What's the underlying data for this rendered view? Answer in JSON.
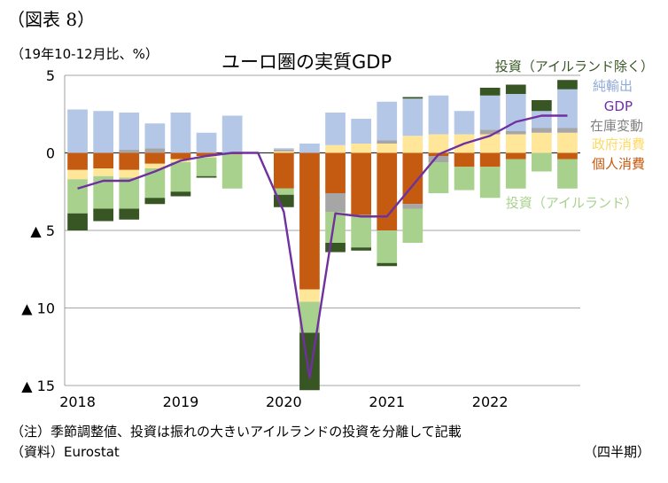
{
  "figure_label": "（図表 8）",
  "notes": {
    "note": "（注）季節調整値、投資は振れの大きいアイルランドの投資を分離して記載",
    "source": "（資料）Eurostat",
    "x_unit": "（四半期）"
  },
  "colors": {
    "investment_ex_ireland": "#375623",
    "net_exports": "#b4c7e7",
    "gdp": "#7030a0",
    "inventory": "#a6a6a6",
    "gov_consumption": "#ffe699",
    "private_consumption": "#c55a11",
    "investment_ireland": "#a9d18e"
  },
  "chart_data": {
    "type": "bar",
    "title": "ユーロ圏の実質GDP",
    "ylabel": "（19年10-12月比、%）",
    "ylim": [
      -15,
      5
    ],
    "y_ticks": [
      {
        "value": 5,
        "label": "5"
      },
      {
        "value": 0,
        "label": "0"
      },
      {
        "value": -5,
        "label": "▲ 5"
      },
      {
        "value": -10,
        "label": "▲ 10"
      },
      {
        "value": -15,
        "label": "▲ 15"
      }
    ],
    "x_labels": [
      {
        "index": 0,
        "label": "2018"
      },
      {
        "index": 4,
        "label": "2019"
      },
      {
        "index": 8,
        "label": "2020"
      },
      {
        "index": 12,
        "label": "2021"
      },
      {
        "index": 16,
        "label": "2022"
      }
    ],
    "categories": [
      "2018Q1",
      "2018Q2",
      "2018Q3",
      "2018Q4",
      "2019Q1",
      "2019Q2",
      "2019Q3",
      "2019Q4",
      "2020Q1",
      "2020Q2",
      "2020Q3",
      "2020Q4",
      "2021Q1",
      "2021Q2",
      "2021Q3",
      "2021Q4",
      "2022Q1",
      "2022Q2",
      "2022Q3",
      "2022Q4"
    ],
    "series": [
      {
        "name": "個人消費",
        "key": "private_consumption",
        "values": [
          -1.1,
          -1.0,
          -1.1,
          -0.7,
          -0.4,
          -0.2,
          -0.1,
          0,
          -2.3,
          -8.8,
          -2.6,
          -4.0,
          -5.0,
          -3.3,
          -0.2,
          -0.9,
          -0.9,
          -0.4,
          0,
          -0.4
        ]
      },
      {
        "name": "政府消費",
        "key": "gov_consumption",
        "values": [
          -0.6,
          -0.5,
          -0.5,
          -0.3,
          -0.2,
          -0.1,
          0,
          0,
          0.1,
          -0.8,
          0.5,
          0.6,
          0.6,
          1.1,
          1.2,
          1.2,
          1.2,
          1.2,
          1.3,
          1.3
        ]
      },
      {
        "name": "在庫変動",
        "key": "inventory",
        "values": [
          0,
          0,
          0.2,
          0.3,
          0,
          0,
          0,
          0,
          0.1,
          0,
          -1.2,
          0,
          0.2,
          -0.3,
          -0.4,
          0,
          0.3,
          0.2,
          0.3,
          0.3
        ]
      },
      {
        "name": "純輸出",
        "key": "net_exports",
        "values": [
          2.8,
          2.7,
          2.4,
          1.6,
          2.6,
          1.3,
          2.4,
          0,
          0.1,
          0.6,
          2.1,
          1.6,
          2.5,
          2.4,
          2.5,
          1.5,
          2.2,
          2.4,
          1.1,
          2.5
        ]
      },
      {
        "name": "投資（アイルランド）",
        "key": "investment_ireland",
        "values": [
          -2.2,
          -2.1,
          -2.0,
          -1.9,
          -1.9,
          -1.2,
          -2.2,
          0,
          -0.4,
          -2.0,
          -2.0,
          -2.1,
          -2.1,
          -2.2,
          -2.0,
          -1.5,
          -2.0,
          -1.9,
          -1.2,
          -1.9
        ]
      },
      {
        "name": "投資（アイルランド除く）",
        "key": "investment_ex_ireland",
        "values": [
          -1.1,
          -0.8,
          -0.7,
          -0.4,
          -0.3,
          -0.1,
          0,
          0,
          -0.8,
          -3.7,
          -0.6,
          -0.2,
          -0.2,
          0.1,
          0,
          0,
          0.5,
          0.6,
          0.7,
          0.6
        ]
      },
      {
        "name": "GDP",
        "key": "gdp",
        "type": "line",
        "values": [
          -2.3,
          -1.8,
          -1.8,
          -1.2,
          -0.5,
          -0.2,
          0,
          0,
          -3.8,
          -14.5,
          -3.9,
          -4.1,
          -4.1,
          -2.1,
          -0.1,
          0.6,
          1.1,
          2.0,
          2.4,
          2.4
        ]
      }
    ],
    "legend": [
      {
        "name": "投資（アイルランド除く）",
        "key": "investment_ex_ireland"
      },
      {
        "name": "純輸出",
        "key": "net_exports"
      },
      {
        "name": "GDP",
        "key": "gdp"
      },
      {
        "name": "在庫変動",
        "key": "inventory"
      },
      {
        "name": "政府消費",
        "key": "gov_consumption"
      },
      {
        "name": "個人消費",
        "key": "private_consumption"
      },
      {
        "name": "投資（アイルランド）",
        "key": "investment_ireland"
      }
    ],
    "grid": "horizontal",
    "legend_placement": "right"
  }
}
